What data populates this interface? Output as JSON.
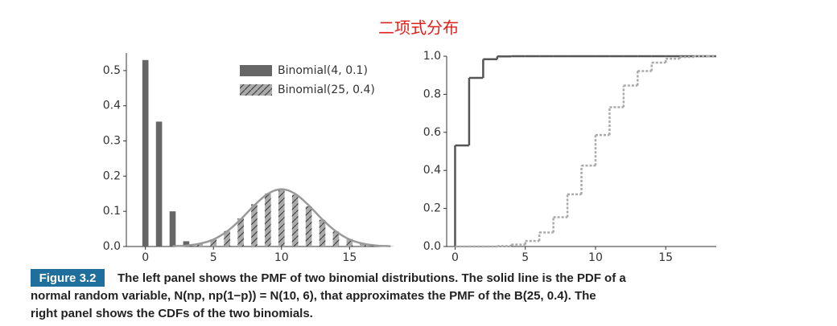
{
  "title": "二项式分布",
  "chart_data": [
    {
      "type": "bar",
      "x": [
        0,
        1,
        2,
        3,
        4,
        5,
        6,
        7,
        8,
        9,
        10,
        11,
        12,
        13,
        14,
        15,
        16,
        17,
        18
      ],
      "series": [
        {
          "name": "Binomial(4, 0.1)",
          "color": "#666666",
          "hatch": false,
          "values": [
            0.53,
            0.355,
            0.1,
            0.015,
            0.001,
            null,
            null,
            null,
            null,
            null,
            null,
            null,
            null,
            null,
            null,
            null,
            null,
            null,
            null
          ]
        },
        {
          "name": "Binomial(25, 0.4)",
          "color": "#aaaaaa",
          "hatch": true,
          "values": [
            0,
            0,
            0,
            0.002,
            0.007,
            0.02,
            0.044,
            0.08,
            0.12,
            0.151,
            0.161,
            0.147,
            0.114,
            0.076,
            0.043,
            0.021,
            0.009,
            0.003,
            0.001
          ]
        }
      ],
      "curve": {
        "color": "#999999",
        "x": [
          2,
          3,
          4,
          5,
          6,
          7,
          8,
          9,
          10,
          11,
          12,
          13,
          14,
          15,
          16,
          17,
          18
        ],
        "values": [
          0.0008,
          0.0027,
          0.008,
          0.02,
          0.043,
          0.077,
          0.117,
          0.15,
          0.163,
          0.15,
          0.117,
          0.077,
          0.043,
          0.02,
          0.008,
          0.0027,
          0.0008
        ]
      },
      "xlim": [
        -1.4,
        17.7
      ],
      "xticks": [
        0,
        5,
        10,
        15
      ],
      "ylim": [
        0,
        0.55
      ],
      "yticks": [
        {
          "value": 0,
          "label": "0.0"
        },
        0.1,
        0.2,
        0.3,
        0.4,
        0.5
      ],
      "legend": "upper right"
    },
    {
      "type": "line",
      "drawstyle": "steps-post",
      "x": [
        0,
        1,
        2,
        3,
        4,
        5,
        6,
        7,
        8,
        9,
        10,
        11,
        12,
        13,
        14,
        15,
        16,
        17,
        18
      ],
      "series": [
        {
          "color": "#555555",
          "linestyle": "solid",
          "values": [
            0.531,
            0.886,
            0.984,
            0.999,
            1,
            1,
            1,
            1,
            1,
            1,
            1,
            1,
            1,
            1,
            1,
            1,
            1,
            1,
            1
          ]
        },
        {
          "color": "#aaaaaa",
          "linestyle": "dotted",
          "values": [
            0,
            0,
            0,
            0.002,
            0.01,
            0.029,
            0.074,
            0.154,
            0.274,
            0.425,
            0.586,
            0.732,
            0.846,
            0.922,
            0.966,
            0.987,
            0.996,
            0.999,
            1
          ]
        }
      ],
      "xlim": [
        -0.6,
        18.6
      ],
      "xticks": [
        0,
        5,
        10,
        15
      ],
      "ylim": [
        0,
        1
      ],
      "yticks": [
        {
          "value": 0,
          "label": "0.0"
        },
        0.2,
        0.4,
        0.6,
        0.8,
        {
          "value": 1,
          "label": "1.0"
        }
      ]
    }
  ],
  "caption": {
    "label": "Figure 3.2",
    "lines": [
      "The left panel shows the PMF of two binomial distributions. The solid line is the PDF of a",
      "normal random variable, N(np, np(1−p)) = N(10, 6), that approximates the PMF of the B(25, 0.4). The",
      "right panel shows the CDFs of the two binomials."
    ]
  }
}
